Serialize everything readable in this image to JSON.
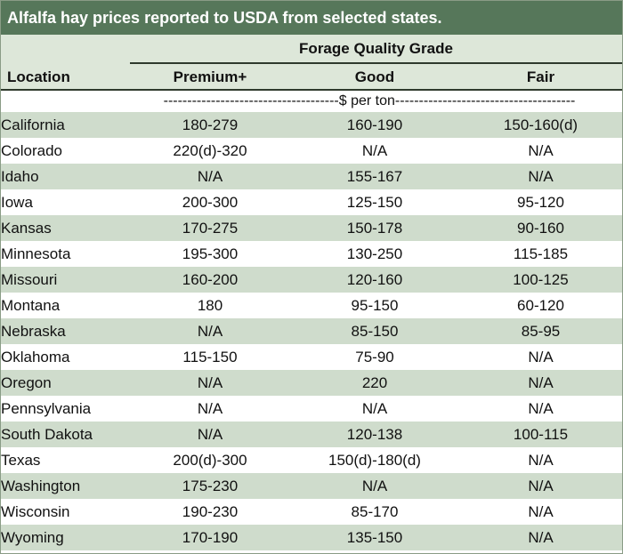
{
  "title": "Alfalfa hay prices reported to USDA from selected states.",
  "header": {
    "group": "Forage Quality Grade",
    "location": "Location",
    "premium": "Premium+",
    "good": "Good",
    "fair": "Fair"
  },
  "units": "-------------------------------------$ per ton--------------------------------------",
  "rows": [
    {
      "location": "California",
      "premium": "180-279",
      "good": "160-190",
      "fair": "150-160(d)"
    },
    {
      "location": "Colorado",
      "premium": "220(d)-320",
      "good": "N/A",
      "fair": "N/A"
    },
    {
      "location": "Idaho",
      "premium": "N/A",
      "good": "155-167",
      "fair": "N/A"
    },
    {
      "location": "Iowa",
      "premium": "200-300",
      "good": "125-150",
      "fair": "95-120"
    },
    {
      "location": "Kansas",
      "premium": "170-275",
      "good": "150-178",
      "fair": "90-160"
    },
    {
      "location": "Minnesota",
      "premium": "195-300",
      "good": "130-250",
      "fair": "115-185"
    },
    {
      "location": "Missouri",
      "premium": "160-200",
      "good": "120-160",
      "fair": "100-125"
    },
    {
      "location": "Montana",
      "premium": "180",
      "good": "95-150",
      "fair": "60-120"
    },
    {
      "location": "Nebraska",
      "premium": "N/A",
      "good": "85-150",
      "fair": "85-95"
    },
    {
      "location": "Oklahoma",
      "premium": "115-150",
      "good": "75-90",
      "fair": "N/A"
    },
    {
      "location": "Oregon",
      "premium": "N/A",
      "good": "220",
      "fair": "N/A"
    },
    {
      "location": "Pennsylvania",
      "premium": "N/A",
      "good": "N/A",
      "fair": "N/A"
    },
    {
      "location": "South Dakota",
      "premium": "N/A",
      "good": "120-138",
      "fair": "100-115"
    },
    {
      "location": "Texas",
      "premium": "200(d)-300",
      "good": "150(d)-180(d)",
      "fair": "N/A"
    },
    {
      "location": "Washington",
      "premium": "175-230",
      "good": "N/A",
      "fair": "N/A"
    },
    {
      "location": "Wisconsin",
      "premium": "190-230",
      "good": "85-170",
      "fair": "N/A"
    },
    {
      "location": "Wyoming",
      "premium": "170-190",
      "good": "135-150",
      "fair": "N/A"
    }
  ]
}
